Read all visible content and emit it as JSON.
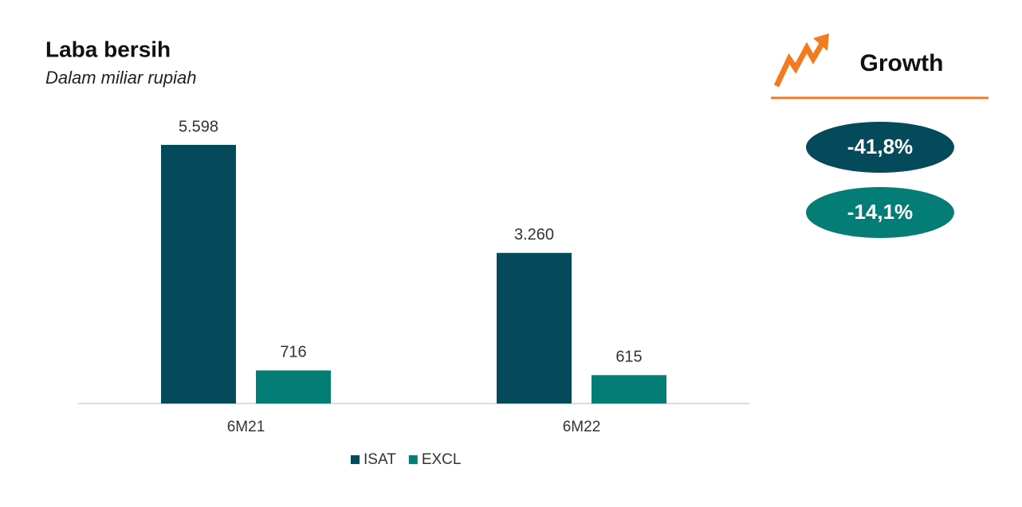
{
  "chart_data": {
    "type": "bar",
    "title": "Laba bersih",
    "subtitle": "Dalam miliar rupiah",
    "categories": [
      "6M21",
      "6M22"
    ],
    "series": [
      {
        "name": "ISAT",
        "color": "#044a5a",
        "values": [
          5598,
          3260
        ],
        "value_labels": [
          "5.598",
          "3.260"
        ]
      },
      {
        "name": "EXCL",
        "color": "#057d77",
        "values": [
          716,
          615
        ],
        "value_labels": [
          "716",
          "615"
        ]
      }
    ],
    "ylim": [
      0,
      6000
    ],
    "annotations": {
      "title": "Growth",
      "values": [
        "-41,8%",
        "-14,1%"
      ]
    }
  }
}
